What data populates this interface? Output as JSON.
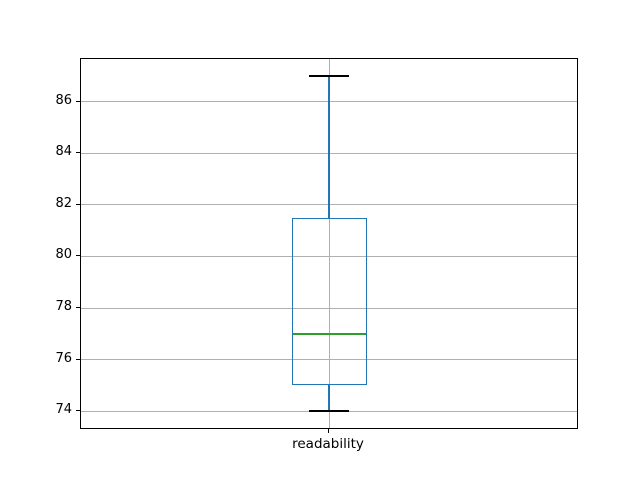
{
  "window": {
    "background": "#ffffff"
  },
  "chart_data": {
    "type": "boxplot",
    "orientation": "vertical",
    "title": "",
    "xlabel": "",
    "ylabel": "",
    "categories": [
      "readability"
    ],
    "series": [
      {
        "label": "readability",
        "whisker_low": 74,
        "q1": 75,
        "median": 77,
        "q3": 81.5,
        "whisker_high": 87
      }
    ],
    "yticks": [
      74,
      76,
      78,
      80,
      82,
      84,
      86
    ],
    "ylim": [
      73.35,
      87.65
    ],
    "grid": true,
    "legend": false,
    "colors": {
      "box": "#1f77b4",
      "whisker": "#1f77b4",
      "cap": "#000000",
      "median": "#2ca02c",
      "grid": "#b0b0b0",
      "axis": "#000000",
      "background": "#ffffff"
    }
  }
}
